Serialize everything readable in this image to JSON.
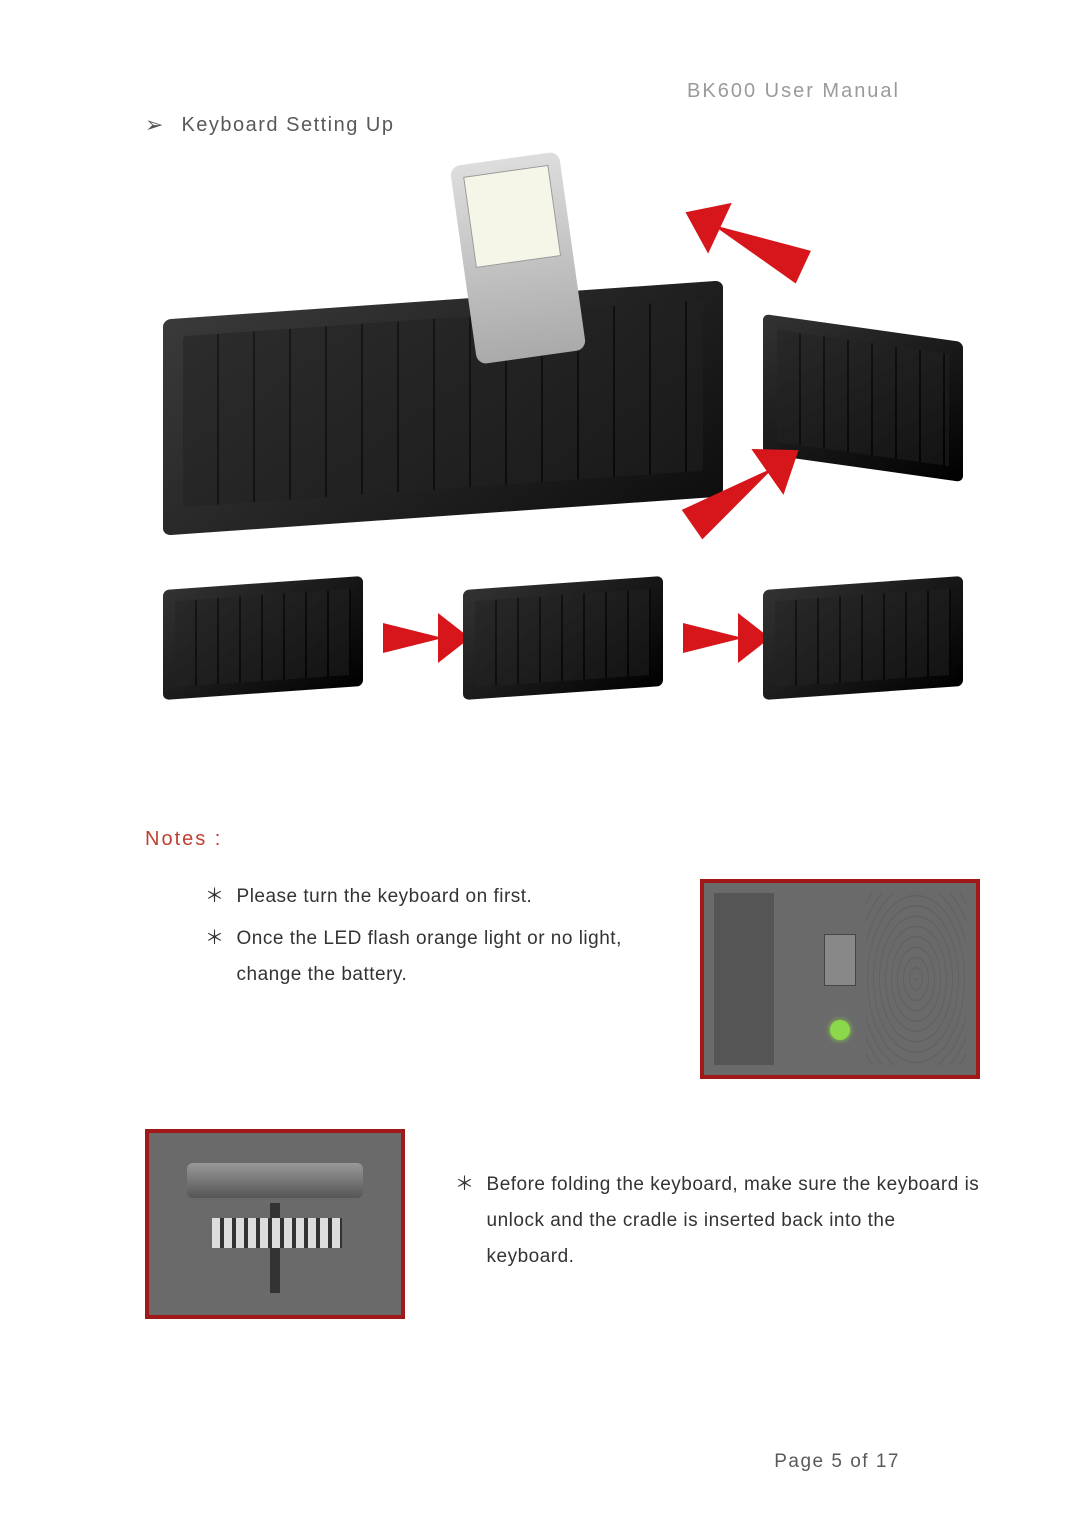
{
  "header": {
    "doc_title": "BK600 User Manual"
  },
  "section": {
    "bullet": "➢",
    "title": "Keyboard Setting Up"
  },
  "notes": {
    "label": "Notes :",
    "asterisk": "＊",
    "items_a": [
      "Please turn the keyboard on first.",
      "Once the LED flash orange light or no light, change the battery."
    ],
    "items_b": [
      "Before folding the keyboard, make sure the keyboard is unlock and the cradle is inserted back into the keyboard."
    ]
  },
  "footer": {
    "page_label": "Page 5 of 17"
  },
  "style": {
    "accent_red": "#d6161a",
    "notes_label_color": "#c04030",
    "thumb_border": "#a01818",
    "body_text": "#333333",
    "header_gray": "#9a9a9a"
  }
}
